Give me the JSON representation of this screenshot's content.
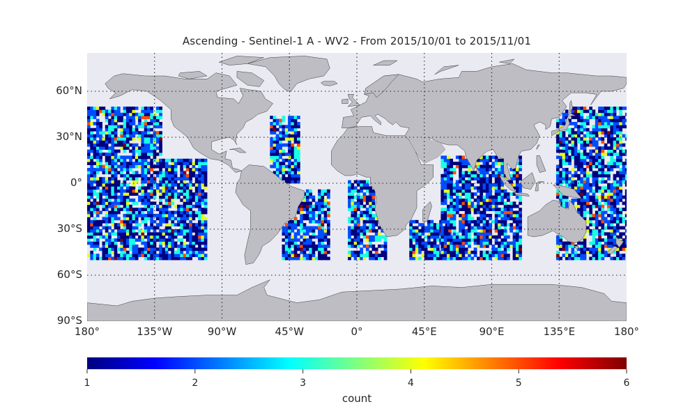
{
  "title": "Ascending - Sentinel-1 A - WV2 - From 2015/10/01 to 2015/11/01",
  "map": {
    "projection": "equirectangular",
    "lon_range": [
      -180,
      180
    ],
    "lat_range": [
      -90,
      85
    ],
    "ocean_color": "#e9eaf2",
    "land_color": "#bdbdc3",
    "coast_color": "#3a3a3a",
    "grid": true,
    "lat_ticks": [
      {
        "lat": 60,
        "label": "60°N"
      },
      {
        "lat": 30,
        "label": "30°N"
      },
      {
        "lat": 0,
        "label": "0°"
      },
      {
        "lat": -30,
        "label": "30°S"
      },
      {
        "lat": -60,
        "label": "60°S"
      },
      {
        "lat": -90,
        "label": "90°S"
      }
    ],
    "lon_ticks": [
      {
        "lon": -180,
        "label": "180°"
      },
      {
        "lon": -135,
        "label": "135°W"
      },
      {
        "lon": -90,
        "label": "90°W"
      },
      {
        "lon": -45,
        "label": "45°W"
      },
      {
        "lon": 0,
        "label": "0°"
      },
      {
        "lon": 45,
        "label": "45°E"
      },
      {
        "lon": 90,
        "label": "90°E"
      },
      {
        "lon": 135,
        "label": "135°E"
      },
      {
        "lon": 180,
        "label": "180°"
      }
    ]
  },
  "chart_data": {
    "type": "heatmap",
    "title": "Ascending - Sentinel-1 A - WV2 - From 2015/10/01 to 2015/11/01",
    "value_label": "count",
    "value_range": [
      1,
      6
    ],
    "colormap": "jet",
    "cell_size_deg": 2,
    "coverage_swaths": [
      {
        "region": "North Pacific",
        "lon": [
          -180,
          -130
        ],
        "lat": [
          -50,
          50
        ]
      },
      {
        "region": "East Pacific",
        "lon": [
          -130,
          -100
        ],
        "lat": [
          -50,
          15
        ]
      },
      {
        "region": "North Atlantic",
        "lon": [
          -58,
          -38
        ],
        "lat": [
          0,
          43
        ]
      },
      {
        "region": "South Atlantic west",
        "lon": [
          -50,
          -18
        ],
        "lat": [
          -50,
          -5
        ]
      },
      {
        "region": "South Atlantic east",
        "lon": [
          -6,
          20
        ],
        "lat": [
          -50,
          2
        ]
      },
      {
        "region": "Indian Ocean west",
        "lon": [
          35,
          62
        ],
        "lat": [
          -50,
          -25
        ]
      },
      {
        "region": "Indian Ocean",
        "lon": [
          56,
          110
        ],
        "lat": [
          -50,
          18
        ]
      },
      {
        "region": "West Pacific",
        "lon": [
          133,
          180
        ],
        "lat": [
          -50,
          50
        ]
      }
    ]
  },
  "colorbar": {
    "ticks": [
      "1",
      "2",
      "3",
      "4",
      "5",
      "6"
    ],
    "label": "count",
    "stops": [
      "#00007f",
      "#0000ff",
      "#007fff",
      "#00ffff",
      "#7fff7f",
      "#ffff00",
      "#ff7f00",
      "#ff0000",
      "#7f0000"
    ]
  }
}
